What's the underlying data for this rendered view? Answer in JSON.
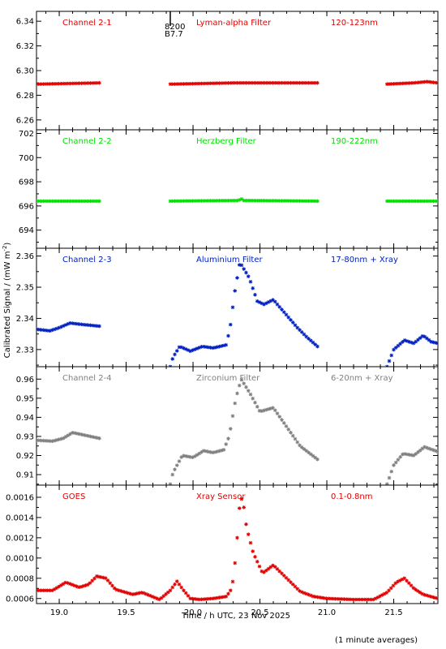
{
  "chart_data": {
    "type": "scatter",
    "xlabel": "Time / h UTC, 23 Nov 2025",
    "ylabel": "Calibrated Signal / (mW m",
    "ylabel_sup": "-2",
    "ylabel_close": ")",
    "footnote": "(1 minute averages)",
    "xlim": [
      18.83,
      21.83
    ],
    "xticks": [
      19.0,
      19.5,
      20.0,
      20.5,
      21.0,
      21.5
    ],
    "xtick_labels": [
      "19.0",
      "19.5",
      "20.0",
      "20.5",
      "21.0",
      "21.5"
    ],
    "marker_annotation": {
      "x": 19.83,
      "line1": "8200",
      "line2": "B7.7"
    },
    "panels": [
      {
        "channel": "Channel 2-1",
        "filter": "Lyman-alpha Filter",
        "band": "120-123nm",
        "color": "#e00000",
        "ylim": [
          6.252,
          6.348
        ],
        "yticks": [
          6.26,
          6.28,
          6.3,
          6.32,
          6.34
        ],
        "ytick_labels": [
          "6.26",
          "6.28",
          "6.30",
          "6.32",
          "6.34"
        ],
        "segments": [
          {
            "start": 18.83,
            "end": 19.3,
            "points": [
              [
                18.83,
                6.289
              ],
              [
                19.3,
                6.29
              ]
            ]
          },
          {
            "start": 19.83,
            "end": 20.93,
            "points": [
              [
                19.83,
                6.289
              ],
              [
                20.3,
                6.29
              ],
              [
                20.93,
                6.29
              ]
            ]
          },
          {
            "start": 21.45,
            "end": 21.83,
            "points": [
              [
                21.45,
                6.289
              ],
              [
                21.65,
                6.29
              ],
              [
                21.75,
                6.291
              ],
              [
                21.83,
                6.29
              ]
            ]
          }
        ]
      },
      {
        "channel": "Channel 2-2",
        "filter": "Herzberg Filter",
        "band": "190-222nm",
        "color": "#00e000",
        "ylim": [
          692.5,
          702.3
        ],
        "yticks": [
          694,
          696,
          698,
          700,
          702
        ],
        "ytick_labels": [
          "694",
          "696",
          "698",
          "700",
          "702"
        ],
        "segments": [
          {
            "start": 18.83,
            "end": 19.3,
            "points": [
              [
                18.83,
                696.4
              ],
              [
                19.3,
                696.4
              ]
            ]
          },
          {
            "start": 19.83,
            "end": 20.93,
            "points": [
              [
                19.83,
                696.4
              ],
              [
                20.34,
                696.45
              ],
              [
                20.36,
                696.6
              ],
              [
                20.38,
                696.45
              ],
              [
                20.93,
                696.4
              ]
            ]
          },
          {
            "start": 21.45,
            "end": 21.83,
            "points": [
              [
                21.45,
                696.4
              ],
              [
                21.83,
                696.4
              ]
            ]
          }
        ]
      },
      {
        "channel": "Channel 2-3",
        "filter": "Aluminium Filter",
        "band": "17-80nm + Xray",
        "color": "#0020c0",
        "ylim": [
          2.3245,
          2.3625
        ],
        "yticks": [
          2.33,
          2.34,
          2.35,
          2.36
        ],
        "ytick_labels": [
          "2.33",
          "2.34",
          "2.35",
          "2.36"
        ],
        "segments": [
          {
            "start": 18.83,
            "end": 19.3,
            "points": [
              [
                18.83,
                2.3365
              ],
              [
                18.93,
                2.336
              ],
              [
                19.0,
                2.337
              ],
              [
                19.08,
                2.3385
              ],
              [
                19.18,
                2.338
              ],
              [
                19.3,
                2.3375
              ]
            ]
          },
          {
            "start": 19.83,
            "end": 20.93,
            "points": [
              [
                19.83,
                2.3245
              ],
              [
                19.85,
                2.3275
              ],
              [
                19.9,
                2.331
              ],
              [
                19.98,
                2.3295
              ],
              [
                20.07,
                2.331
              ],
              [
                20.15,
                2.3305
              ],
              [
                20.25,
                2.3315
              ],
              [
                20.28,
                2.338
              ],
              [
                20.31,
                2.348
              ],
              [
                20.35,
                2.358
              ],
              [
                20.42,
                2.353
              ],
              [
                20.48,
                2.3455
              ],
              [
                20.53,
                2.3445
              ],
              [
                20.6,
                2.346
              ],
              [
                20.68,
                2.342
              ],
              [
                20.78,
                2.337
              ],
              [
                20.85,
                2.334
              ],
              [
                20.93,
                2.331
              ]
            ]
          },
          {
            "start": 21.45,
            "end": 21.83,
            "points": [
              [
                21.45,
                2.3245
              ],
              [
                21.5,
                2.33
              ],
              [
                21.58,
                2.333
              ],
              [
                21.65,
                2.332
              ],
              [
                21.72,
                2.3345
              ],
              [
                21.78,
                2.3325
              ],
              [
                21.83,
                2.332
              ]
            ]
          }
        ]
      },
      {
        "channel": "Channel 2-4",
        "filter": "Zirconium Filter",
        "band": "6-20nm + Xray",
        "color": "#808080",
        "ylim": [
          0.9045,
          0.9665
        ],
        "yticks": [
          0.91,
          0.92,
          0.93,
          0.94,
          0.95,
          0.96
        ],
        "ytick_labels": [
          "0.91",
          "0.92",
          "0.93",
          "0.94",
          "0.95",
          "0.96"
        ],
        "segments": [
          {
            "start": 18.83,
            "end": 19.3,
            "points": [
              [
                18.83,
                0.928
              ],
              [
                18.95,
                0.9275
              ],
              [
                19.03,
                0.929
              ],
              [
                19.1,
                0.932
              ],
              [
                19.2,
                0.9305
              ],
              [
                19.3,
                0.929
              ]
            ]
          },
          {
            "start": 19.83,
            "end": 20.93,
            "points": [
              [
                19.83,
                0.905
              ],
              [
                19.85,
                0.911
              ],
              [
                19.92,
                0.92
              ],
              [
                20.0,
                0.919
              ],
              [
                20.08,
                0.9225
              ],
              [
                20.15,
                0.9215
              ],
              [
                20.23,
                0.923
              ],
              [
                20.27,
                0.93
              ],
              [
                20.32,
                0.95
              ],
              [
                20.36,
                0.96
              ],
              [
                20.43,
                0.952
              ],
              [
                20.5,
                0.943
              ],
              [
                20.6,
                0.945
              ],
              [
                20.7,
                0.935
              ],
              [
                20.8,
                0.925
              ],
              [
                20.93,
                0.918
              ]
            ]
          },
          {
            "start": 21.45,
            "end": 21.83,
            "points": [
              [
                21.45,
                0.905
              ],
              [
                21.5,
                0.915
              ],
              [
                21.57,
                0.921
              ],
              [
                21.65,
                0.92
              ],
              [
                21.73,
                0.9245
              ],
              [
                21.83,
                0.922
              ]
            ]
          }
        ]
      },
      {
        "channel": "GOES",
        "filter": "Xray Sensor",
        "band": "0.1-0.8nm",
        "color": "#e00000",
        "ylim": [
          0.00055,
          0.00172
        ],
        "yticks": [
          0.0006,
          0.0008,
          0.001,
          0.0012,
          0.0014,
          0.0016
        ],
        "ytick_labels": [
          "0.0006",
          "0.0008",
          "0.0010",
          "0.0012",
          "0.0014",
          "0.0016"
        ],
        "segments": [
          {
            "start": 18.83,
            "end": 21.83,
            "points": [
              [
                18.83,
                0.00068
              ],
              [
                18.95,
                0.00068
              ],
              [
                19.05,
                0.00076
              ],
              [
                19.15,
                0.00071
              ],
              [
                19.22,
                0.00074
              ],
              [
                19.28,
                0.00082
              ],
              [
                19.35,
                0.0008
              ],
              [
                19.42,
                0.00069
              ],
              [
                19.55,
                0.00064
              ],
              [
                19.62,
                0.00066
              ],
              [
                19.75,
                0.00059
              ],
              [
                19.83,
                0.00068
              ],
              [
                19.88,
                0.00077
              ],
              [
                19.93,
                0.00068
              ],
              [
                19.98,
                0.0006
              ],
              [
                20.05,
                0.00059
              ],
              [
                20.15,
                0.0006
              ],
              [
                20.25,
                0.00062
              ],
              [
                20.29,
                0.0007
              ],
              [
                20.31,
                0.0009
              ],
              [
                20.33,
                0.0012
              ],
              [
                20.35,
                0.00155
              ],
              [
                20.37,
                0.0016
              ],
              [
                20.4,
                0.0013
              ],
              [
                20.45,
                0.00105
              ],
              [
                20.52,
                0.00085
              ],
              [
                20.6,
                0.00093
              ],
              [
                20.7,
                0.0008
              ],
              [
                20.8,
                0.00067
              ],
              [
                20.9,
                0.00062
              ],
              [
                21.0,
                0.0006
              ],
              [
                21.2,
                0.00059
              ],
              [
                21.35,
                0.00059
              ],
              [
                21.45,
                0.00066
              ],
              [
                21.52,
                0.00076
              ],
              [
                21.58,
                0.0008
              ],
              [
                21.65,
                0.0007
              ],
              [
                21.72,
                0.00064
              ],
              [
                21.83,
                0.0006
              ]
            ]
          }
        ]
      }
    ]
  }
}
